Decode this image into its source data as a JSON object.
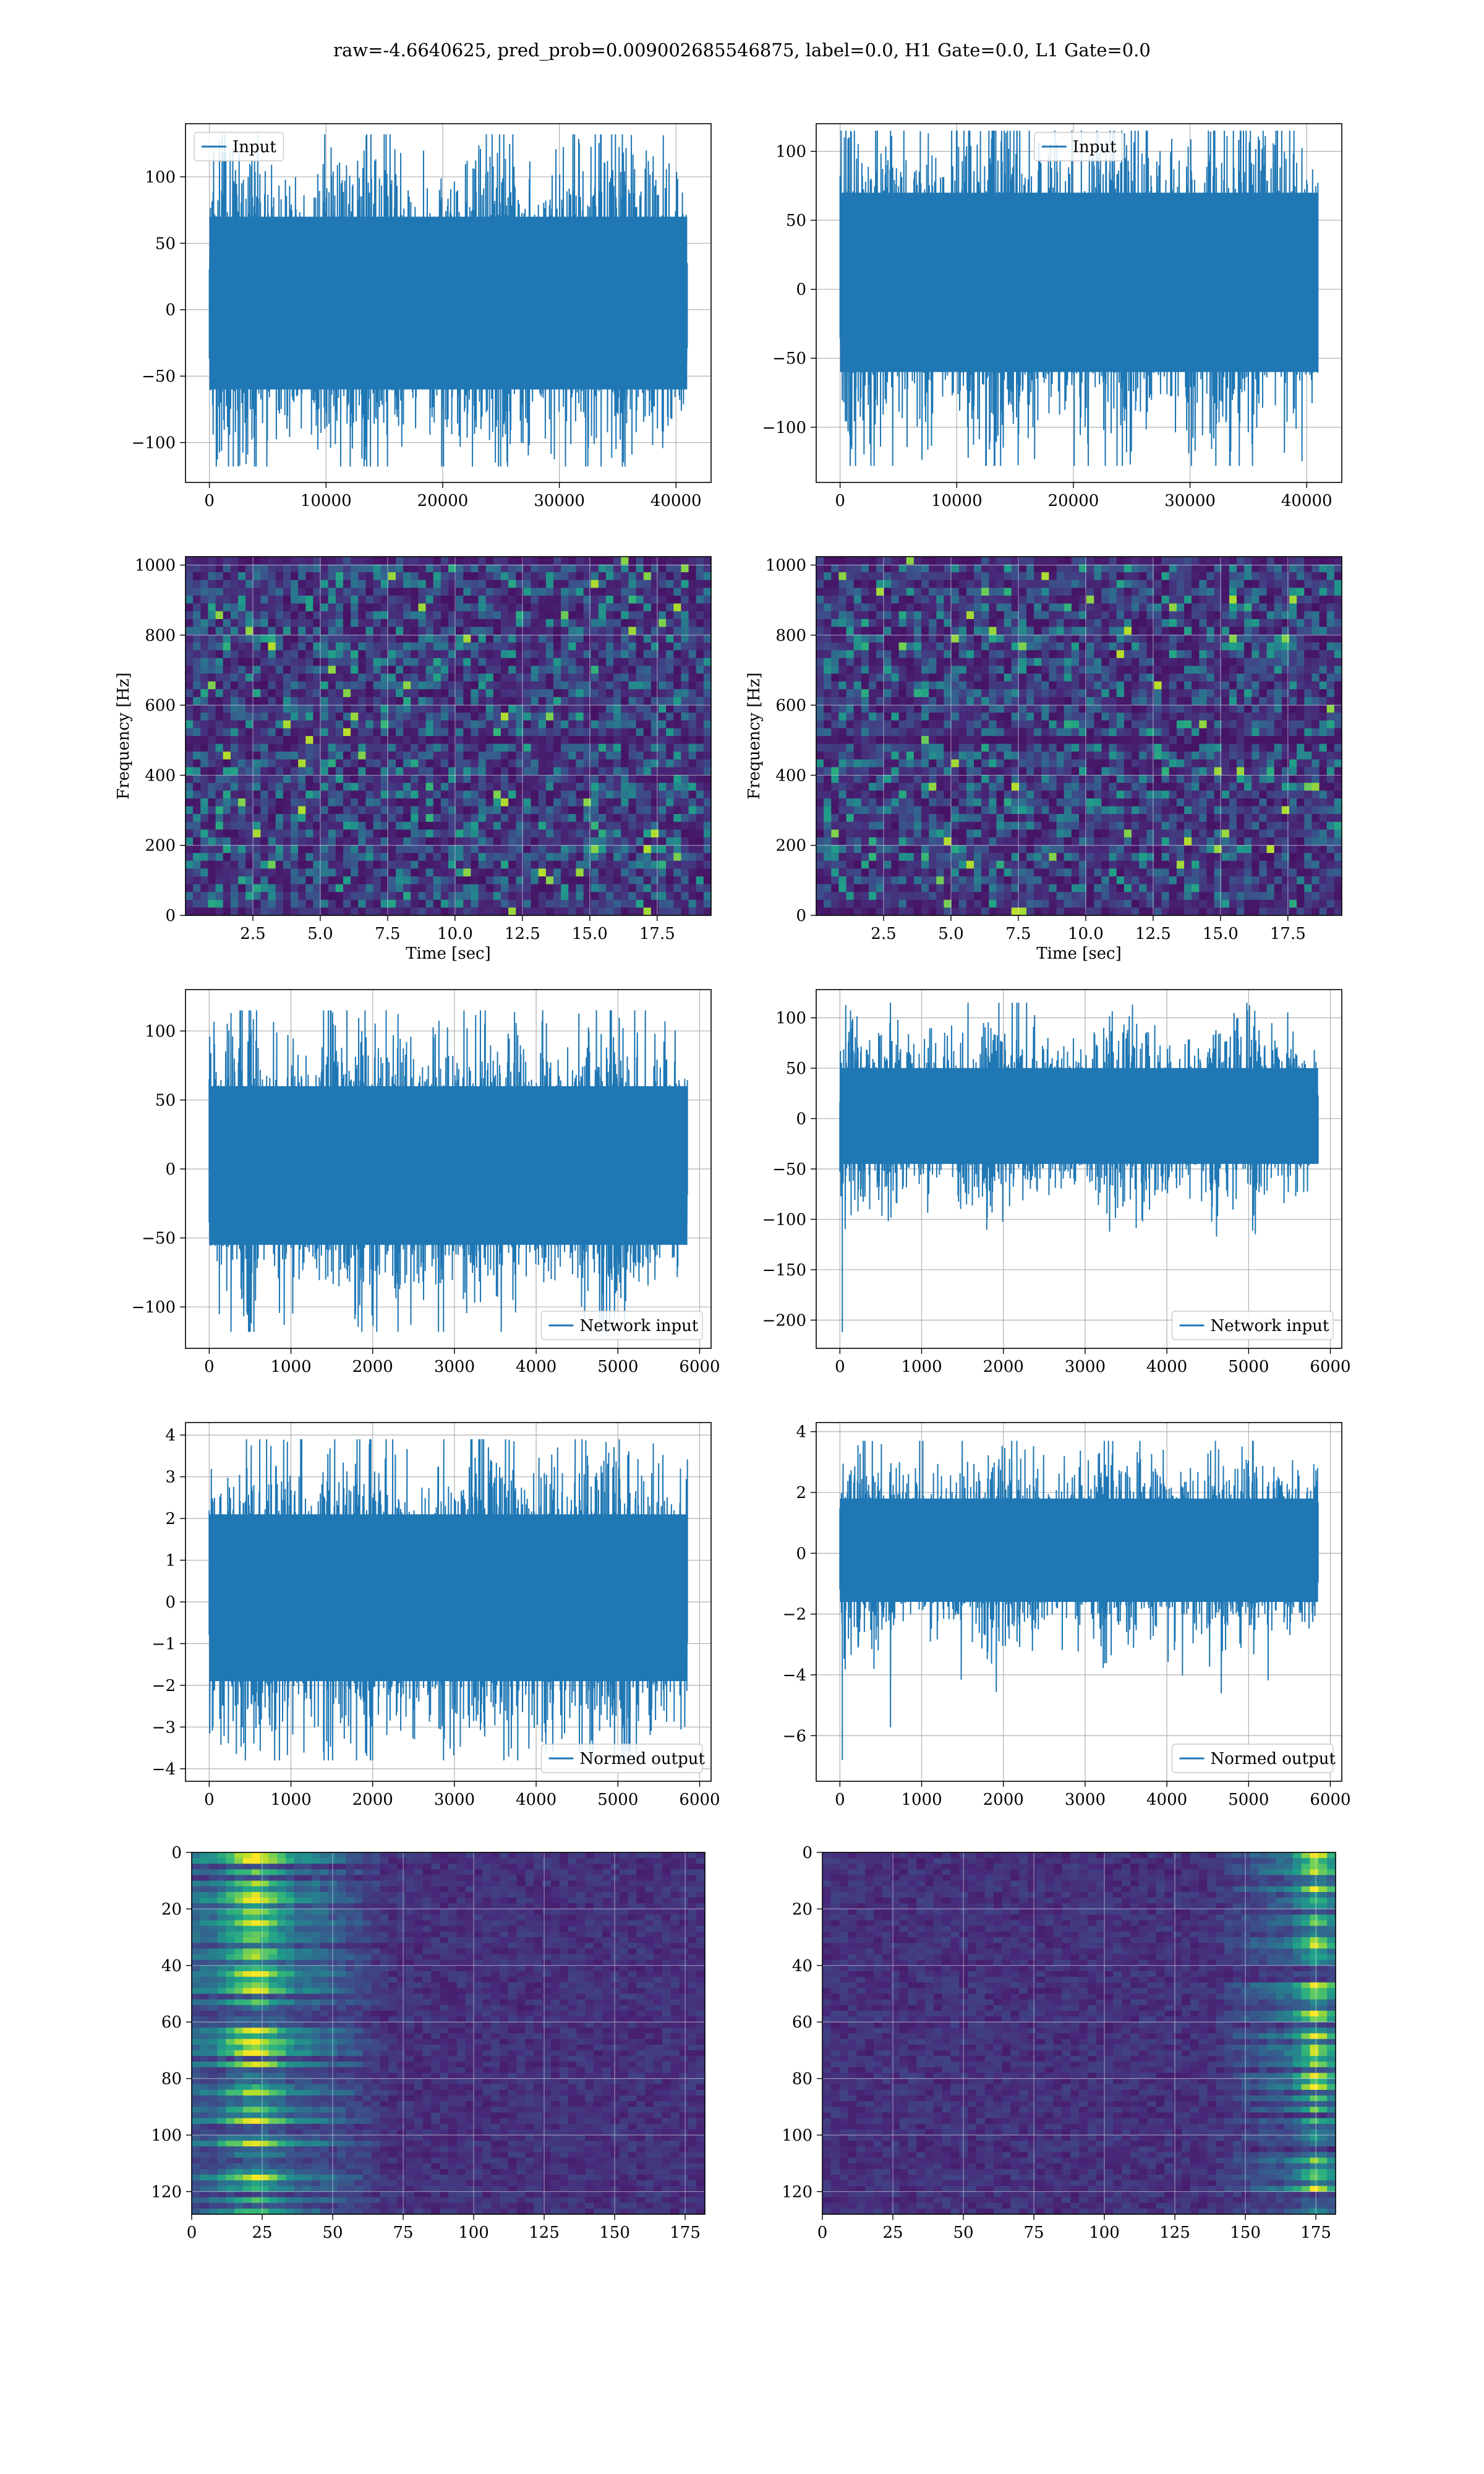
{
  "figure": {
    "title": "raw=-4.6640625, pred_prob=0.009002685546875, label=0.0, H1 Gate=0.0, L1 Gate=0.0"
  },
  "colors": {
    "line": "#1f77b4",
    "grid": "#b0b0b0",
    "viridis_dark": "#440154",
    "viridis_mid": "#21918c",
    "viridis_light": "#fde725"
  },
  "chart_data": [
    {
      "id": "h1-input",
      "type": "line",
      "title": "",
      "xlabel": "",
      "ylabel": "",
      "legend": "top-left",
      "grid": true,
      "series": [
        {
          "name": "Input",
          "n_points": 40960,
          "amplitude_core": [
            -60,
            70
          ],
          "extremes": [
            -118,
            132
          ]
        }
      ],
      "xlim": [
        -2048,
        43008
      ],
      "ylim": [
        -130,
        140
      ],
      "xticks": [
        0,
        10000,
        20000,
        30000,
        40000
      ],
      "yticks": [
        -100,
        -50,
        0,
        50,
        100
      ]
    },
    {
      "id": "l1-input",
      "type": "line",
      "title": "",
      "xlabel": "",
      "ylabel": "",
      "legend": "top-center",
      "grid": true,
      "series": [
        {
          "name": "Input",
          "n_points": 40960,
          "amplitude_core": [
            -60,
            70
          ],
          "extremes": [
            -128,
            115
          ]
        }
      ],
      "xlim": [
        -2048,
        43008
      ],
      "ylim": [
        -140,
        120
      ],
      "xticks": [
        0,
        10000,
        20000,
        30000,
        40000
      ],
      "yticks": [
        -100,
        -50,
        0,
        50,
        100
      ]
    },
    {
      "id": "h1-spectrogram",
      "type": "heatmap",
      "title": "",
      "grid": true,
      "xlabel": "Time [sec]",
      "ylabel": "Frequency [Hz]",
      "xlim": [
        0.0,
        19.5
      ],
      "ylim": [
        0,
        1024
      ],
      "xticks": [
        "2.5",
        "5.0",
        "7.5",
        "10.0",
        "12.5",
        "15.0",
        "17.5"
      ],
      "yticks": [
        0,
        200,
        400,
        600,
        800,
        1000
      ],
      "colormap": "viridis",
      "dark_band_hz": 500
    },
    {
      "id": "l1-spectrogram",
      "type": "heatmap",
      "title": "",
      "grid": true,
      "xlabel": "Time [sec]",
      "ylabel": "Frequency [Hz]",
      "xlim": [
        0.0,
        19.5
      ],
      "ylim": [
        0,
        1024
      ],
      "xticks": [
        "2.5",
        "5.0",
        "7.5",
        "10.0",
        "12.5",
        "15.0",
        "17.5"
      ],
      "yticks": [
        0,
        200,
        400,
        600,
        800,
        1000
      ],
      "colormap": "viridis",
      "dark_band_hz": 500
    },
    {
      "id": "h1-network-input",
      "type": "line",
      "title": "",
      "xlabel": "",
      "ylabel": "",
      "legend": "bottom-right",
      "grid": true,
      "series": [
        {
          "name": "Network input",
          "n_points": 5850,
          "amplitude_core": [
            -55,
            60
          ],
          "extremes": [
            -118,
            115
          ]
        }
      ],
      "xlim": [
        -290,
        6140
      ],
      "ylim": [
        -130,
        130
      ],
      "xticks": [
        0,
        1000,
        2000,
        3000,
        4000,
        5000,
        6000
      ],
      "yticks": [
        -100,
        -50,
        0,
        50,
        100
      ]
    },
    {
      "id": "l1-network-input",
      "type": "line",
      "title": "",
      "xlabel": "",
      "ylabel": "",
      "legend": "bottom-right",
      "grid": true,
      "series": [
        {
          "name": "Network input",
          "n_points": 5850,
          "amplitude_core": [
            -45,
            50
          ],
          "extremes": [
            -212,
            115
          ]
        }
      ],
      "xlim": [
        -290,
        6140
      ],
      "ylim": [
        -228,
        128
      ],
      "xticks": [
        0,
        1000,
        2000,
        3000,
        4000,
        5000,
        6000
      ],
      "yticks": [
        -200,
        -150,
        -100,
        -50,
        0,
        50,
        100
      ]
    },
    {
      "id": "h1-normed-output",
      "type": "line",
      "title": "",
      "xlabel": "",
      "ylabel": "",
      "legend": "bottom-right",
      "grid": true,
      "series": [
        {
          "name": "Normed output",
          "n_points": 5850,
          "amplitude_core": [
            -1.9,
            2.1
          ],
          "extremes": [
            -3.8,
            3.9
          ]
        }
      ],
      "xlim": [
        -290,
        6140
      ],
      "ylim": [
        -4.3,
        4.3
      ],
      "xticks": [
        0,
        1000,
        2000,
        3000,
        4000,
        5000,
        6000
      ],
      "yticks": [
        -4,
        -3,
        -2,
        -1,
        0,
        1,
        2,
        3,
        4
      ]
    },
    {
      "id": "l1-normed-output",
      "type": "line",
      "title": "",
      "xlabel": "",
      "ylabel": "",
      "legend": "bottom-right",
      "grid": true,
      "series": [
        {
          "name": "Normed output",
          "n_points": 5850,
          "amplitude_core": [
            -1.6,
            1.8
          ],
          "extremes": [
            -6.8,
            3.7
          ]
        }
      ],
      "xlim": [
        -290,
        6140
      ],
      "ylim": [
        -7.5,
        4.3
      ],
      "xticks": [
        0,
        1000,
        2000,
        3000,
        4000,
        5000,
        6000
      ],
      "yticks": [
        -6,
        -4,
        -2,
        0,
        2,
        4
      ]
    },
    {
      "id": "h1-feature-map",
      "type": "heatmap",
      "title": "",
      "xlabel": "",
      "ylabel": "",
      "grid": true,
      "xlim": [
        0,
        182
      ],
      "ylim": [
        128,
        0
      ],
      "xticks": [
        0,
        25,
        50,
        75,
        100,
        125,
        150,
        175
      ],
      "yticks": [
        0,
        20,
        40,
        60,
        80,
        100,
        120
      ],
      "colormap": "viridis",
      "bright_columns": [
        5,
        40
      ]
    },
    {
      "id": "l1-feature-map",
      "type": "heatmap",
      "title": "",
      "xlabel": "",
      "ylabel": "",
      "grid": true,
      "xlim": [
        0,
        182
      ],
      "ylim": [
        128,
        0
      ],
      "xticks": [
        0,
        25,
        50,
        75,
        100,
        125,
        150,
        175
      ],
      "yticks": [
        0,
        20,
        40,
        60,
        80,
        100,
        120
      ],
      "colormap": "viridis",
      "bright_columns": [
        168,
        182
      ]
    }
  ]
}
